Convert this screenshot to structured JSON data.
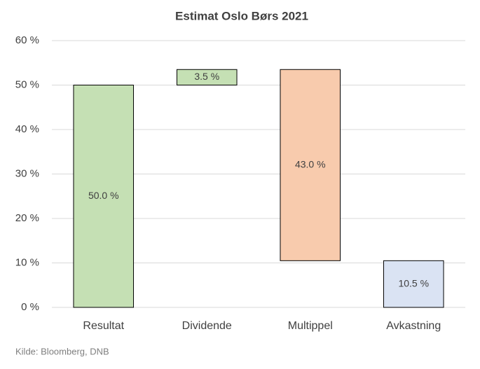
{
  "chart_data": {
    "type": "waterfall",
    "title": "Estimat Oslo Børs 2021",
    "categories": [
      "Resultat",
      "Dividende",
      "Multippel",
      "Avkastning"
    ],
    "values": [
      50.0,
      3.5,
      43.0,
      10.5
    ],
    "value_labels": [
      "50.0 %",
      "3.5 %",
      "43.0 %",
      "10.5 %"
    ],
    "measures": [
      "increase",
      "increase",
      "decrease",
      "total"
    ],
    "colors": {
      "increase": "#c5e0b4",
      "decrease": "#f8cbad",
      "total": "#dae3f3"
    },
    "ylim": [
      0,
      60
    ],
    "yticks": [
      {
        "value": 0,
        "label": "0 %"
      },
      {
        "value": 10,
        "label": "10 %"
      },
      {
        "value": 20,
        "label": "20 %"
      },
      {
        "value": 30,
        "label": "30 %"
      },
      {
        "value": 40,
        "label": "40 %"
      },
      {
        "value": 50,
        "label": "50 %"
      },
      {
        "value": 60,
        "label": "60 %"
      }
    ],
    "grid": true,
    "source": "Kilde: Bloomberg, DNB"
  }
}
